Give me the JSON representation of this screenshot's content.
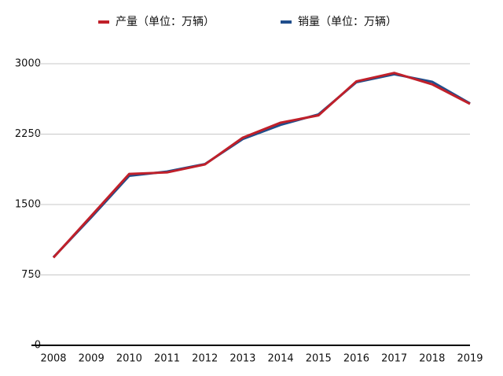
{
  "chart_data": {
    "type": "line",
    "categories": [
      "2008",
      "2009",
      "2010",
      "2011",
      "2012",
      "2013",
      "2014",
      "2015",
      "2016",
      "2017",
      "2018",
      "2019"
    ],
    "series": [
      {
        "name": "销量（单位：万辆）",
        "color": "#1f4e8c",
        "values": [
          938,
          1364,
          1806,
          1851,
          1931,
          2198,
          2349,
          2460,
          2803,
          2888,
          2808,
          2577
        ]
      },
      {
        "name": "产量（单位：万辆）",
        "color": "#c0202a",
        "values": [
          934,
          1379,
          1826,
          1842,
          1927,
          2212,
          2372,
          2450,
          2812,
          2902,
          2781,
          2572
        ]
      }
    ],
    "ylim": [
      0,
      3000
    ],
    "yticks": [
      0,
      750,
      1500,
      2250,
      3000
    ],
    "grid": true
  }
}
